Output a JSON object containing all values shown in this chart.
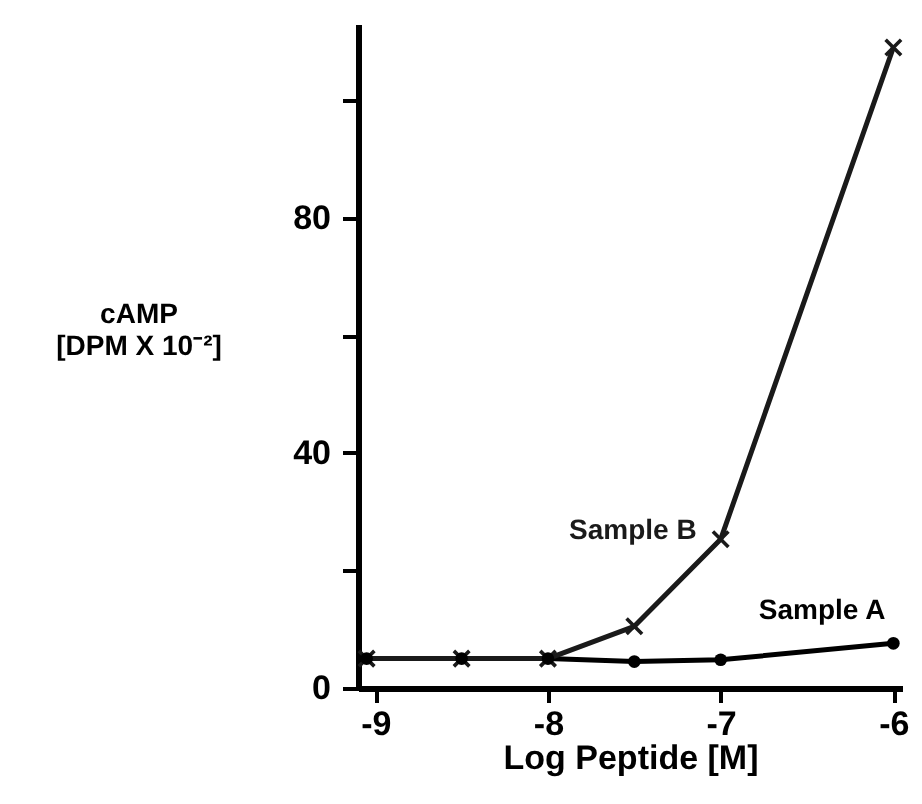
{
  "chart_data": {
    "type": "line",
    "xlabel": "Log Peptide [M]",
    "ylabel": "cAMP\n[DPM X 10⁻²]",
    "xlim": [
      -9.1,
      -5.95
    ],
    "xticks": [
      -9,
      -8,
      -7,
      -6
    ],
    "ylim": [
      0,
      113
    ],
    "yticks": [
      0,
      {
        "value": 20,
        "label": null
      },
      40,
      {
        "value": 60,
        "label": null
      },
      80,
      {
        "value": 100,
        "label": null
      }
    ],
    "grid": false,
    "legend": false,
    "line_style": "solid",
    "series": [
      {
        "name": "Sample A",
        "color": "#000000",
        "marker": "circle",
        "x": [
          -9.05,
          -8.5,
          -8,
          -7.5,
          -7,
          -6
        ],
        "values": [
          5,
          5,
          5,
          4.5,
          4.8,
          7.6
        ]
      },
      {
        "name": "Sample B",
        "color": "#1a1a1a",
        "marker": "cross",
        "x": [
          -9.05,
          -8.5,
          -8,
          -7.5,
          -7,
          -6
        ],
        "values": [
          5,
          5,
          5,
          10.5,
          25.3,
          109
        ]
      }
    ]
  }
}
